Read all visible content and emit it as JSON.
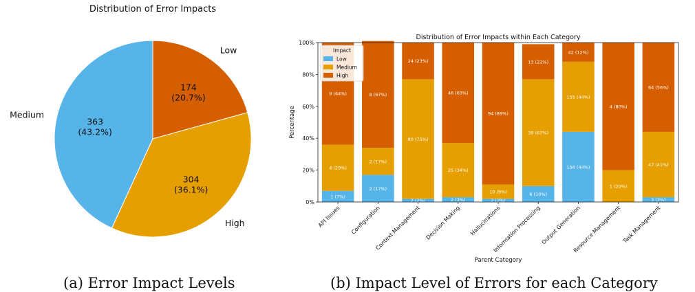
{
  "chart_data": [
    {
      "type": "pie",
      "title": "Distribution of Error Impacts",
      "slices": [
        {
          "label": "Low",
          "value": 174,
          "percent": "20.7%",
          "value_text": "174",
          "percent_text": "(20.7%)",
          "color": "#d55e00"
        },
        {
          "label": "High",
          "value": 304,
          "percent": "36.1%",
          "value_text": "304",
          "percent_text": "(36.1%)",
          "color": "#e69f00"
        },
        {
          "label": "Medium",
          "value": 363,
          "percent": "43.2%",
          "value_text": "363",
          "percent_text": "(43.2%)",
          "color": "#56b4e9"
        }
      ],
      "caption": "(a) Error Impact Levels"
    },
    {
      "type": "bar",
      "stacked": true,
      "title": "Distribution of Error Impacts within Each Category",
      "xlabel": "Parent Category",
      "ylabel": "Percentage",
      "ylim": [
        0,
        100
      ],
      "yticks": [
        "0%",
        "20%",
        "40%",
        "60%",
        "80%",
        "100%"
      ],
      "legend_title": "Impact",
      "legend_position": "top-left",
      "categories": [
        "API Issues",
        "Configuration",
        "Context Management",
        "Decision Making",
        "Hallucinations",
        "Information Processing",
        "Output Generation",
        "Resource Management",
        "Task Management"
      ],
      "series": [
        {
          "name": "Low",
          "color": "#56b4e9",
          "values": [
            7,
            17,
            2,
            3,
            2,
            10,
            44,
            0,
            3
          ],
          "labels": [
            "1 (7%)",
            "2 (17%)",
            "2 (2%)",
            "2 (3%)",
            "2 (2%)",
            "6 (10%)",
            "156 (44%)",
            "",
            "3 (3%)"
          ]
        },
        {
          "name": "Medium",
          "color": "#e69f00",
          "values": [
            29,
            17,
            75,
            34,
            9,
            67,
            44,
            20,
            41
          ],
          "labels": [
            "4 (29%)",
            "2 (17%)",
            "80 (75%)",
            "25 (34%)",
            "10 (9%)",
            "39 (67%)",
            "155 (44%)",
            "1 (20%)",
            "47 (41%)"
          ]
        },
        {
          "name": "High",
          "color": "#d55e00",
          "values": [
            64,
            67,
            23,
            63,
            89,
            22,
            12,
            80,
            56
          ],
          "labels": [
            "9 (64%)",
            "8 (67%)",
            "24 (23%)",
            "46 (63%)",
            "94 (89%)",
            "13 (22%)",
            "42 (12%)",
            "4 (80%)",
            "64 (56%)"
          ]
        }
      ],
      "caption": "(b) Impact Level of Errors for each Category"
    }
  ]
}
